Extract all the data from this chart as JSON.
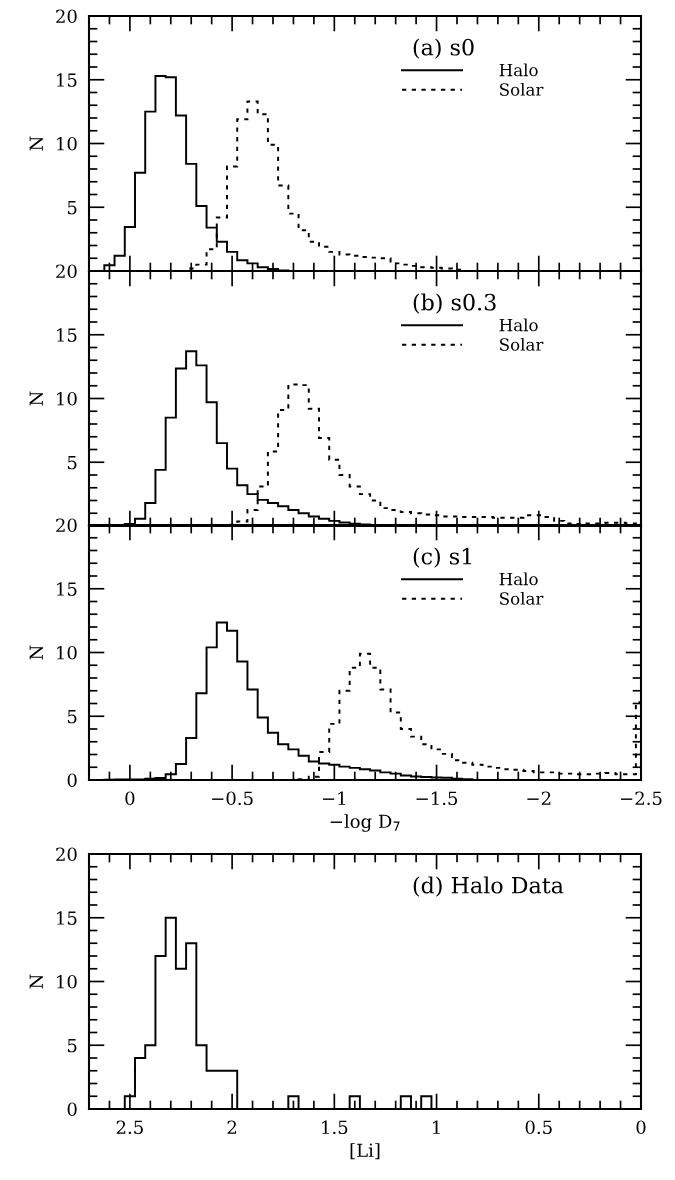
{
  "chart_data": [
    {
      "type": "histogram",
      "ylabel": "N",
      "annotations": [
        "(a) s0"
      ],
      "legend": "top right",
      "tick_labels": "y",
      "bins": [
        0.125,
        0.075,
        0.025,
        -0.025,
        -0.075,
        -0.125,
        -0.175,
        -0.225,
        -0.275,
        -0.325,
        -0.375,
        -0.425,
        -0.475,
        -0.525,
        -0.575,
        -0.625,
        -0.675,
        -0.725,
        -0.775,
        -0.825,
        -0.875,
        -0.925,
        -0.975,
        -1.025,
        -1.075,
        -1.125,
        -1.175,
        -1.225,
        -1.275,
        -1.325,
        -1.375,
        -1.425,
        -1.475,
        -1.525,
        -1.575,
        -1.625,
        -1.675,
        -1.725,
        -1.775,
        -1.825,
        -1.875,
        -1.925,
        -1.975,
        -2.025,
        -2.075,
        -2.125,
        -2.175,
        -2.225,
        -2.275,
        -2.325,
        -2.375,
        -2.425,
        -2.475,
        -2.5
      ],
      "series": [
        {
          "name": "Halo",
          "color": "#000000",
          "line_style": "solid",
          "values": [
            0.45,
            1.2,
            3.45,
            7.7,
            12.5,
            15.3,
            15.2,
            12.2,
            8.4,
            5.1,
            3.4,
            2.3,
            1.5,
            0.85,
            0.6,
            0.3,
            0.15,
            0.05,
            0,
            0,
            0,
            0,
            0,
            0,
            0,
            0,
            0,
            0,
            0,
            0,
            0,
            0,
            0,
            0,
            0,
            0,
            0,
            0,
            0,
            0,
            0,
            0,
            0,
            0,
            0,
            0,
            0,
            0,
            0,
            0,
            0,
            0,
            0
          ]
        },
        {
          "name": "Solar",
          "color": "#000000",
          "line_style": "dotted",
          "values": [
            0,
            0,
            0,
            0,
            0,
            0,
            0,
            0,
            0.2,
            0.5,
            1.7,
            4.2,
            8.2,
            11.9,
            13.3,
            12.3,
            9.9,
            6.7,
            4.5,
            3.2,
            2.3,
            1.9,
            1.5,
            1.3,
            1.2,
            1.1,
            1.05,
            1.0,
            0.6,
            0.5,
            0.4,
            0.3,
            0.25,
            0.2,
            0.1,
            0,
            0,
            0,
            0,
            0,
            0,
            0,
            0,
            0,
            0,
            0,
            0,
            0,
            0,
            0,
            0,
            0,
            0
          ]
        }
      ],
      "xlim": [
        0.2,
        -2.5
      ],
      "xticks": [
        {
          "value": 0,
          "label": null
        },
        {
          "value": -0.5,
          "label": null
        },
        {
          "value": -1,
          "label": null
        },
        {
          "value": -1.5,
          "label": null
        },
        {
          "value": -2,
          "label": null
        },
        {
          "value": -2.5,
          "label": null
        }
      ],
      "ylim": [
        0,
        20
      ],
      "yticks": [
        {
          "value": 0,
          "label": null
        },
        5,
        10,
        15,
        20
      ]
    },
    {
      "type": "histogram",
      "ylabel": "N",
      "annotations": [
        "(b) s0.3"
      ],
      "legend": "top right",
      "tick_labels": "y",
      "bins": [
        0.125,
        0.075,
        0.025,
        -0.025,
        -0.075,
        -0.125,
        -0.175,
        -0.225,
        -0.275,
        -0.325,
        -0.375,
        -0.425,
        -0.475,
        -0.525,
        -0.575,
        -0.625,
        -0.675,
        -0.725,
        -0.775,
        -0.825,
        -0.875,
        -0.925,
        -0.975,
        -1.025,
        -1.075,
        -1.125,
        -1.175,
        -1.225,
        -1.275,
        -1.325,
        -1.375,
        -1.425,
        -1.475,
        -1.525,
        -1.575,
        -1.625,
        -1.675,
        -1.725,
        -1.775,
        -1.825,
        -1.875,
        -1.925,
        -1.975,
        -2.025,
        -2.075,
        -2.125,
        -2.175,
        -2.225,
        -2.275,
        -2.325,
        -2.375,
        -2.425,
        -2.475,
        -2.5
      ],
      "series": [
        {
          "name": "Halo",
          "color": "#000000",
          "line_style": "solid",
          "values": [
            0,
            0.05,
            0.15,
            0.57,
            1.8,
            4.4,
            8.5,
            12.35,
            13.7,
            12.6,
            9.7,
            6.5,
            4.5,
            3.2,
            2.5,
            2.05,
            1.8,
            1.55,
            1.25,
            1.0,
            0.75,
            0.57,
            0.4,
            0.27,
            0.18,
            0.12,
            0.06,
            0,
            0,
            0,
            0,
            0,
            0,
            0,
            0,
            0,
            0,
            0,
            0,
            0,
            0,
            0,
            0,
            0,
            0,
            0,
            0,
            0,
            0,
            0,
            0,
            0,
            0
          ]
        },
        {
          "name": "Solar",
          "color": "#000000",
          "line_style": "dotted",
          "values": [
            0,
            0,
            0,
            0,
            0,
            0,
            0,
            0,
            0,
            0,
            0,
            0.03,
            0.1,
            0.35,
            1.25,
            3.1,
            5.85,
            9.1,
            11.1,
            11.05,
            9.2,
            6.9,
            5.2,
            4.0,
            3.1,
            2.5,
            2.0,
            1.4,
            1.25,
            1.1,
            1.0,
            0.9,
            0.85,
            0.75,
            0.75,
            0.7,
            0.7,
            0.7,
            0.65,
            0.65,
            0.65,
            0.85,
            0.85,
            0.7,
            0.4,
            0.2,
            0.15,
            0.2,
            0.2,
            0.25,
            0.25,
            0.2,
            0.15
          ]
        }
      ],
      "xlim": [
        0.2,
        -2.5
      ],
      "xticks": [
        {
          "value": 0,
          "label": null
        },
        {
          "value": -0.5,
          "label": null
        },
        {
          "value": -1,
          "label": null
        },
        {
          "value": -1.5,
          "label": null
        },
        {
          "value": -2,
          "label": null
        },
        {
          "value": -2.5,
          "label": null
        }
      ],
      "ylim": [
        0,
        20
      ],
      "yticks": [
        {
          "value": 0,
          "label": null
        },
        5,
        10,
        15,
        20
      ]
    },
    {
      "type": "histogram",
      "ylabel": "N",
      "xlabel": "−log D$_{7}$",
      "annotations": [
        "(c) s1"
      ],
      "legend": "top right",
      "bins": [
        0.125,
        0.075,
        0.025,
        -0.025,
        -0.075,
        -0.125,
        -0.175,
        -0.225,
        -0.275,
        -0.325,
        -0.375,
        -0.425,
        -0.475,
        -0.525,
        -0.575,
        -0.625,
        -0.675,
        -0.725,
        -0.775,
        -0.825,
        -0.875,
        -0.925,
        -0.975,
        -1.025,
        -1.075,
        -1.125,
        -1.175,
        -1.225,
        -1.275,
        -1.325,
        -1.375,
        -1.425,
        -1.475,
        -1.525,
        -1.575,
        -1.625,
        -1.675,
        -1.725,
        -1.775,
        -1.825,
        -1.875,
        -1.925,
        -1.975,
        -2.025,
        -2.075,
        -2.125,
        -2.175,
        -2.225,
        -2.275,
        -2.325,
        -2.375,
        -2.425,
        -2.475,
        -2.5
      ],
      "series": [
        {
          "name": "Halo",
          "color": "#000000",
          "line_style": "solid",
          "values": [
            0.03,
            0.05,
            0.05,
            0.05,
            0.1,
            0.15,
            0.45,
            1.25,
            3.3,
            6.8,
            10.4,
            12.35,
            11.7,
            9.3,
            7.1,
            4.9,
            3.7,
            2.8,
            2.4,
            1.9,
            1.45,
            1.3,
            1.2,
            1.05,
            0.95,
            0.85,
            0.75,
            0.6,
            0.5,
            0.35,
            0.27,
            0.24,
            0.2,
            0.17,
            0.1,
            0.07,
            0,
            0,
            0,
            0,
            0,
            0,
            0,
            0,
            0,
            0,
            0,
            0,
            0,
            0,
            0,
            0,
            0
          ]
        },
        {
          "name": "Solar",
          "color": "#000000",
          "line_style": "dotted",
          "values": [
            0,
            0,
            0,
            0,
            0,
            0,
            0,
            0,
            0,
            0,
            0,
            0,
            0,
            0,
            0,
            0,
            0,
            0,
            0,
            0.07,
            0.25,
            2.2,
            4.4,
            7.0,
            8.8,
            9.9,
            8.8,
            7.1,
            5.3,
            4.0,
            3.4,
            2.8,
            2.4,
            2.05,
            1.55,
            1.35,
            1.2,
            1.05,
            0.95,
            0.85,
            0.8,
            0.7,
            0.6,
            0.6,
            0.5,
            0.5,
            0.45,
            0.45,
            0.5,
            0.55,
            0.45,
            0.45,
            6.1
          ]
        }
      ],
      "xlim": [
        0.2,
        -2.5
      ],
      "xticks": [
        0,
        {
          "value": -0.5,
          "label": "−0.5"
        },
        {
          "value": -1,
          "label": "−1"
        },
        {
          "value": -1.5,
          "label": "−1.5"
        },
        {
          "value": -2,
          "label": "−2"
        },
        {
          "value": -2.5,
          "label": "−2.5"
        }
      ],
      "ylim": [
        0,
        20
      ],
      "yticks": [
        0,
        5,
        10,
        15,
        20
      ]
    },
    {
      "type": "histogram",
      "ylabel": "N",
      "xlabel": "[Li]",
      "annotations": [
        "(d) Halo Data"
      ],
      "color": "#000000",
      "bins": [
        2.525,
        2.475,
        2.425,
        2.375,
        2.325,
        2.275,
        2.225,
        2.175,
        2.125,
        2.075,
        2.025,
        1.975,
        1.925,
        1.875,
        1.825,
        1.775,
        1.725,
        1.675,
        1.625,
        1.575,
        1.525,
        1.475,
        1.425,
        1.375,
        1.325,
        1.275,
        1.225,
        1.175,
        1.125,
        1.075,
        1.025
      ],
      "values": [
        1,
        4,
        5,
        12,
        15,
        11,
        13,
        5,
        3,
        3,
        3,
        0,
        0,
        0,
        0,
        0,
        1,
        0,
        0,
        0,
        0,
        0,
        1,
        0,
        0,
        0,
        0,
        1,
        0,
        1
      ],
      "xlim": [
        2.7,
        0
      ],
      "xticks": [
        2.5,
        2,
        1.5,
        1,
        0.5,
        0
      ],
      "ylim": [
        0,
        20
      ],
      "yticks": [
        0,
        5,
        10,
        15,
        20
      ]
    }
  ]
}
